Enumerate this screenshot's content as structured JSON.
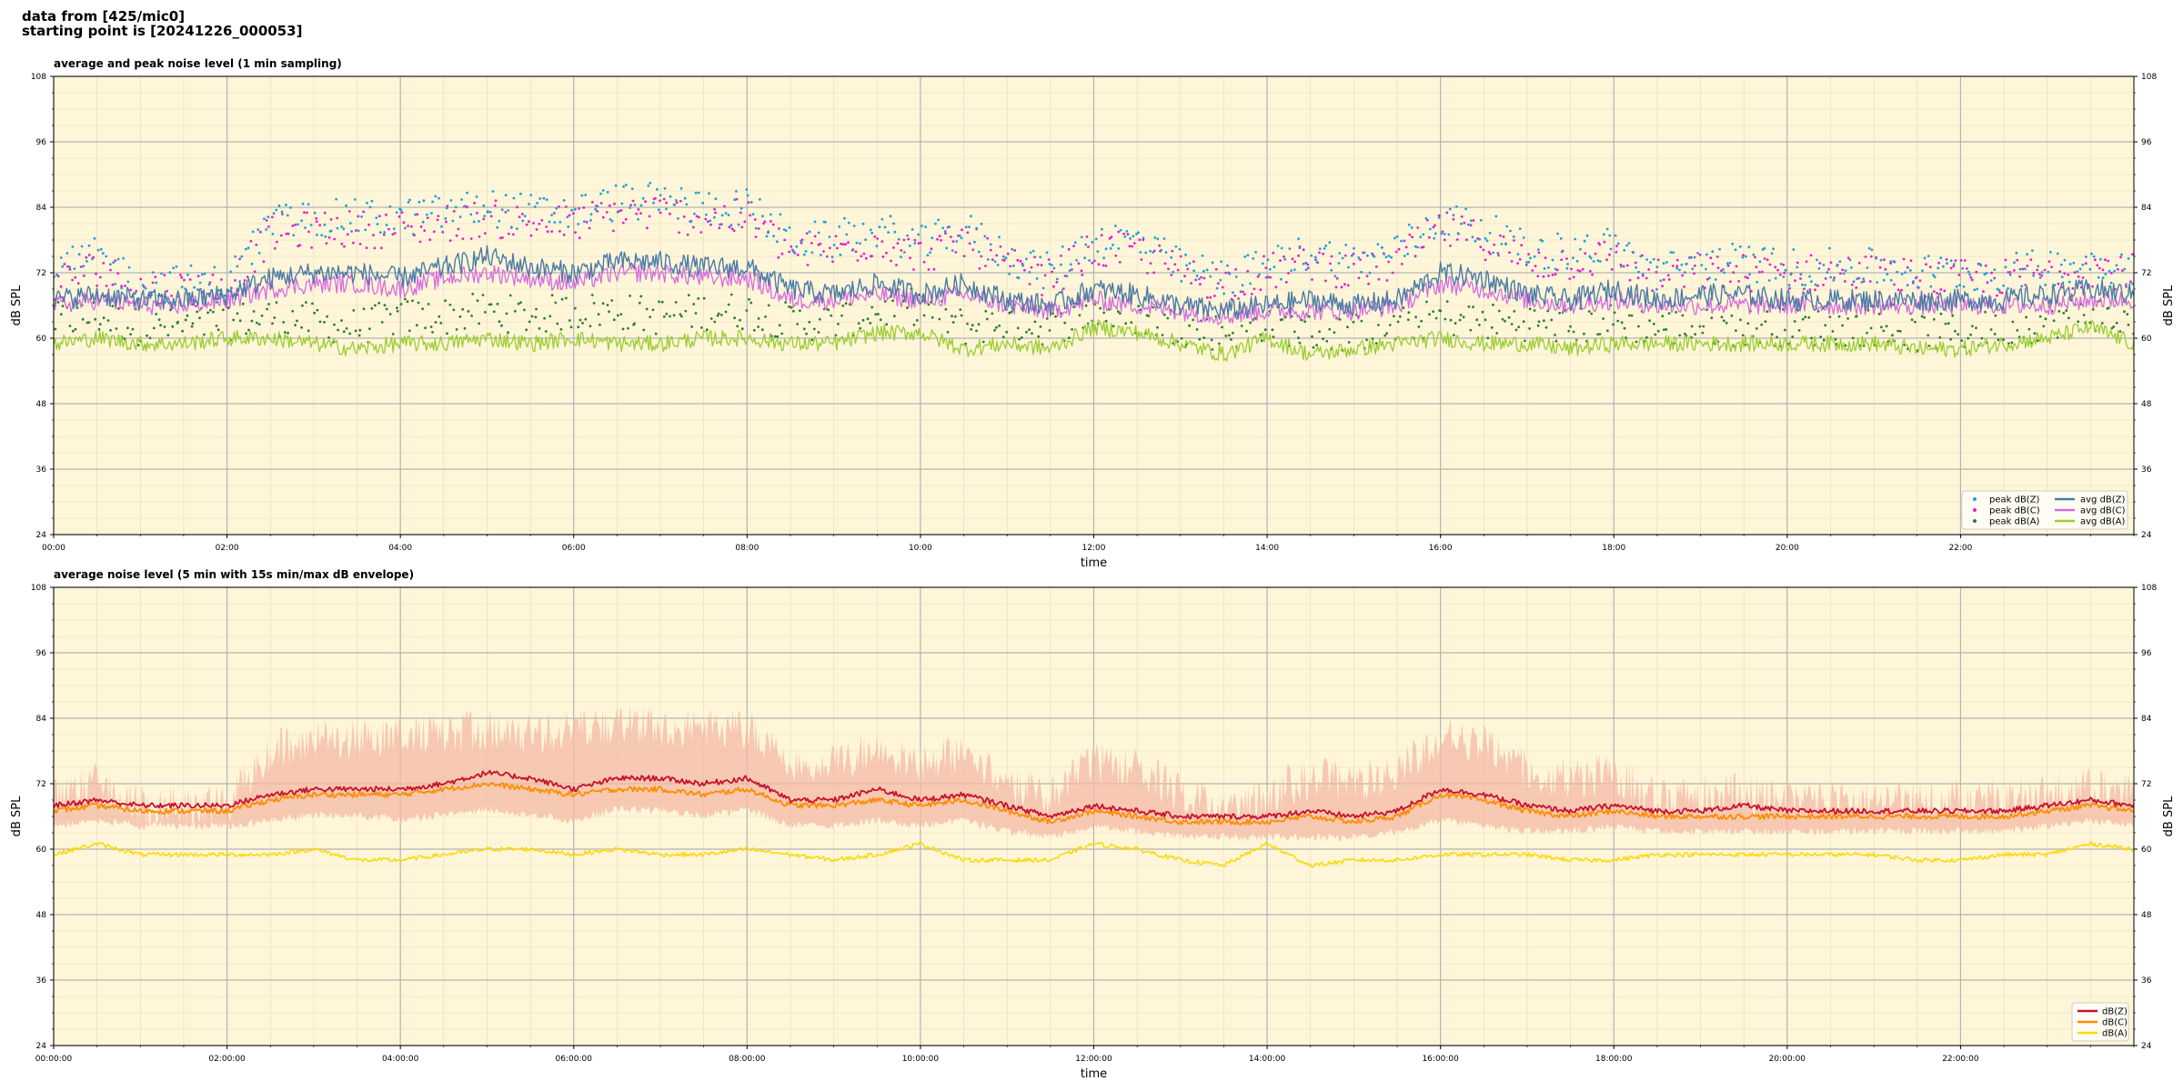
{
  "header": {
    "line1": "data from [425/mic0]",
    "line2": "starting point is [20241226_000053]"
  },
  "colors": {
    "plot_bg": "#fff6d9",
    "grid_major": "#b3b3b3",
    "grid_minor": "#e2d9bb",
    "peak_z": "#1f9fd9",
    "peak_c": "#e81ecf",
    "peak_a": "#2e7d32",
    "avg_z": "#4a7ba6",
    "avg_c": "#d66be0",
    "avg_a": "#9acd32",
    "env_z": "#c8102e",
    "env_c": "#ff8c00",
    "env_a": "#ffd700",
    "envelope_fill": "#f4b9a4"
  },
  "chart_data": [
    {
      "type": "line",
      "title": "average and peak noise level (1 min sampling)",
      "xlabel": "time",
      "ylabel": "dB SPL",
      "ylim": [
        24,
        108
      ],
      "xlim_hours": [
        0,
        24
      ],
      "yticks": [
        "24",
        "36",
        "48",
        "60",
        "72",
        "84",
        "96",
        "108"
      ],
      "xtick_labels": [
        "00:00",
        "02:00",
        "04:00",
        "06:00",
        "08:00",
        "10:00",
        "12:00",
        "14:00",
        "16:00",
        "18:00",
        "20:00",
        "22:00"
      ],
      "grid": true,
      "legend_position": "bottom-right",
      "legend": [
        "peak dB(Z)",
        "peak dB(C)",
        "peak dB(A)",
        "avg dB(Z)",
        "avg dB(C)",
        "avg dB(A)"
      ],
      "x_hours": [
        0,
        0.5,
        1,
        1.5,
        2,
        2.5,
        3,
        3.5,
        4,
        4.5,
        5,
        5.5,
        6,
        6.5,
        7,
        7.5,
        8,
        8.5,
        9,
        9.5,
        10,
        10.5,
        11,
        11.5,
        12,
        12.5,
        13,
        13.5,
        14,
        14.5,
        15,
        15.5,
        16,
        16.5,
        17,
        17.5,
        18,
        18.5,
        19,
        19.5,
        20,
        20.5,
        21,
        21.5,
        22,
        22.5,
        23,
        23.5,
        24
      ],
      "series": [
        {
          "name": "avg dB(Z)",
          "values": [
            67,
            68,
            67,
            67,
            68,
            71,
            72,
            72,
            71,
            73,
            75,
            73,
            72,
            74,
            74,
            73,
            73,
            69,
            68,
            70,
            68,
            70,
            67,
            66,
            69,
            68,
            66,
            65,
            66,
            67,
            66,
            67,
            72,
            71,
            68,
            67,
            69,
            67,
            68,
            68,
            67,
            67,
            67,
            67,
            67,
            67,
            68,
            69,
            68
          ]
        },
        {
          "name": "avg dB(C)",
          "values": [
            66,
            67,
            66,
            66,
            67,
            69,
            70,
            70,
            69,
            71,
            72,
            71,
            70,
            72,
            72,
            71,
            71,
            67,
            67,
            68,
            67,
            68,
            66,
            65,
            67,
            66,
            65,
            64,
            65,
            65,
            65,
            66,
            70,
            69,
            67,
            66,
            67,
            66,
            66,
            66,
            66,
            66,
            66,
            66,
            66,
            66,
            66,
            67,
            67
          ]
        },
        {
          "name": "avg dB(A)",
          "values": [
            59,
            60,
            59,
            59,
            60,
            60,
            59,
            58,
            59,
            59,
            60,
            59,
            60,
            59,
            59,
            60,
            60,
            59,
            59,
            61,
            61,
            58,
            59,
            58,
            62,
            61,
            59,
            57,
            60,
            57,
            58,
            59,
            60,
            59,
            59,
            58,
            59,
            59,
            59,
            59,
            59,
            59,
            59,
            58,
            58,
            59,
            60,
            62,
            59
          ]
        },
        {
          "name": "peak dB(Z)",
          "values": [
            72,
            75,
            70,
            70,
            70,
            81,
            82,
            82,
            82,
            83,
            84,
            83,
            83,
            85,
            85,
            84,
            84,
            78,
            78,
            80,
            77,
            80,
            75,
            72,
            78,
            78,
            73,
            71,
            73,
            76,
            74,
            76,
            82,
            80,
            76,
            76,
            77,
            72,
            74,
            74,
            73,
            73,
            73,
            72,
            72,
            72,
            73,
            74,
            73
          ]
        },
        {
          "name": "peak dB(C)",
          "values": [
            70,
            73,
            69,
            69,
            69,
            79,
            80,
            80,
            80,
            81,
            82,
            81,
            81,
            83,
            83,
            82,
            82,
            76,
            76,
            78,
            75,
            78,
            73,
            71,
            76,
            76,
            72,
            70,
            72,
            74,
            72,
            74,
            80,
            78,
            74,
            74,
            75,
            71,
            72,
            72,
            72,
            72,
            72,
            71,
            71,
            71,
            72,
            73,
            72
          ]
        },
        {
          "name": "peak dB(A)",
          "values": [
            63,
            64,
            62,
            62,
            63,
            64,
            63,
            62,
            64,
            64,
            65,
            64,
            65,
            65,
            64,
            65,
            65,
            63,
            63,
            65,
            66,
            62,
            63,
            62,
            65,
            64,
            62,
            61,
            63,
            61,
            61,
            62,
            64,
            63,
            63,
            62,
            63,
            62,
            62,
            62,
            62,
            62,
            62,
            61,
            61,
            62,
            63,
            65,
            62
          ]
        }
      ]
    },
    {
      "type": "area",
      "title": "average noise level (5 min with 15s min/max dB envelope)",
      "xlabel": "time",
      "ylabel": "dB SPL",
      "ylim": [
        24,
        108
      ],
      "xlim_hours": [
        0,
        24
      ],
      "yticks": [
        "24",
        "36",
        "48",
        "60",
        "72",
        "84",
        "96",
        "108"
      ],
      "xtick_labels": [
        "00:00:00",
        "02:00:00",
        "04:00:00",
        "06:00:00",
        "08:00:00",
        "10:00:00",
        "12:00:00",
        "14:00:00",
        "16:00:00",
        "18:00:00",
        "20:00:00",
        "22:00:00"
      ],
      "grid": true,
      "legend_position": "bottom-right",
      "legend": [
        "dB(Z)",
        "dB(C)",
        "dB(A)"
      ],
      "x_hours": [
        0,
        0.5,
        1,
        1.5,
        2,
        2.5,
        3,
        3.5,
        4,
        4.5,
        5,
        5.5,
        6,
        6.5,
        7,
        7.5,
        8,
        8.5,
        9,
        9.5,
        10,
        10.5,
        11,
        11.5,
        12,
        12.5,
        13,
        13.5,
        14,
        14.5,
        15,
        15.5,
        16,
        16.5,
        17,
        17.5,
        18,
        18.5,
        19,
        19.5,
        20,
        20.5,
        21,
        21.5,
        22,
        22.5,
        23,
        23.5,
        24
      ],
      "series": [
        {
          "name": "dB(Z)",
          "values": [
            68,
            69,
            68,
            68,
            68,
            70,
            71,
            71,
            71,
            72,
            74,
            73,
            71,
            73,
            73,
            72,
            73,
            69,
            69,
            71,
            69,
            70,
            68,
            66,
            68,
            67,
            66,
            66,
            66,
            67,
            66,
            67,
            71,
            70,
            68,
            67,
            68,
            67,
            67,
            68,
            67,
            67,
            67,
            67,
            67,
            67,
            68,
            69,
            68
          ]
        },
        {
          "name": "dB(C)",
          "values": [
            67,
            68,
            67,
            67,
            67,
            69,
            70,
            70,
            70,
            71,
            72,
            71,
            70,
            71,
            71,
            70,
            71,
            68,
            68,
            69,
            68,
            69,
            67,
            65,
            67,
            66,
            65,
            65,
            65,
            66,
            65,
            66,
            70,
            69,
            67,
            66,
            67,
            66,
            66,
            66,
            66,
            66,
            66,
            66,
            66,
            66,
            67,
            68,
            67
          ]
        },
        {
          "name": "dB(A)",
          "values": [
            59,
            61,
            59,
            59,
            59,
            59,
            60,
            58,
            58,
            59,
            60,
            60,
            59,
            60,
            59,
            59,
            60,
            59,
            58,
            59,
            61,
            58,
            58,
            58,
            61,
            60,
            58,
            57,
            61,
            57,
            58,
            58,
            59,
            59,
            59,
            58,
            58,
            59,
            59,
            59,
            59,
            59,
            59,
            58,
            58,
            59,
            59,
            61,
            60
          ]
        },
        {
          "name": "envelope max",
          "values": [
            74,
            76,
            72,
            72,
            72,
            82,
            84,
            84,
            85,
            85,
            86,
            85,
            86,
            87,
            86,
            86,
            86,
            80,
            80,
            82,
            80,
            82,
            76,
            73,
            80,
            79,
            74,
            72,
            74,
            77,
            76,
            78,
            85,
            83,
            78,
            77,
            78,
            73,
            74,
            74,
            73,
            73,
            73,
            73,
            73,
            73,
            74,
            75,
            74
          ]
        },
        {
          "name": "envelope min",
          "values": [
            65,
            66,
            65,
            65,
            65,
            66,
            67,
            67,
            66,
            67,
            68,
            67,
            66,
            68,
            68,
            67,
            68,
            65,
            65,
            66,
            65,
            66,
            64,
            63,
            65,
            64,
            63,
            63,
            63,
            63,
            63,
            64,
            66,
            65,
            64,
            64,
            65,
            64,
            64,
            64,
            64,
            64,
            64,
            64,
            64,
            64,
            65,
            66,
            65
          ]
        }
      ]
    }
  ]
}
